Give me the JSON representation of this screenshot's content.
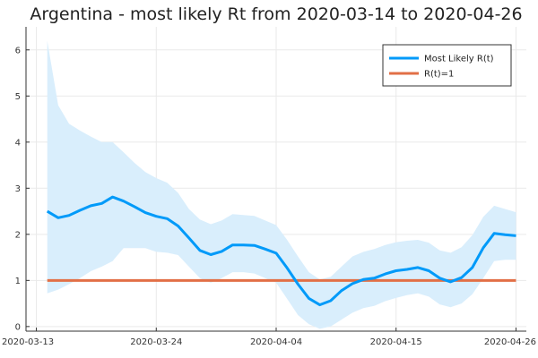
{
  "chart_data": {
    "type": "line",
    "title": "Argentina - most likely Rt from 2020-03-14 to 2020-04-26",
    "xlabel": "",
    "ylabel": "",
    "x_start": "2020-03-14",
    "x_end": "2020-04-26",
    "x_ticks": [
      "2020-03-13",
      "2020-03-24",
      "2020-04-04",
      "2020-04-15",
      "2020-04-26"
    ],
    "ylim": [
      -0.1,
      6.5
    ],
    "y_ticks": [
      0,
      1,
      2,
      3,
      4,
      5,
      6
    ],
    "grid": true,
    "legend_position": "top-right",
    "colors": {
      "most_likely": "#009AF9",
      "reference": "#E26F46",
      "band": "#D9EEFC"
    },
    "series": [
      {
        "name": "Most Likely R(t)",
        "values": [
          2.5,
          2.36,
          2.41,
          2.52,
          2.62,
          2.67,
          2.81,
          2.72,
          2.6,
          2.47,
          2.39,
          2.34,
          2.18,
          1.92,
          1.65,
          1.56,
          1.63,
          1.77,
          1.77,
          1.76,
          1.68,
          1.59,
          1.27,
          0.92,
          0.61,
          0.47,
          0.56,
          0.78,
          0.93,
          1.02,
          1.05,
          1.14,
          1.21,
          1.24,
          1.28,
          1.21,
          1.05,
          0.97,
          1.06,
          1.28,
          1.71,
          2.02,
          1.99,
          1.97
        ]
      },
      {
        "name": "R(t)=1",
        "values": [
          1,
          1
        ]
      }
    ],
    "interval": {
      "low": [
        0.72,
        0.8,
        0.92,
        1.05,
        1.2,
        1.3,
        1.42,
        1.7,
        1.7,
        1.7,
        1.62,
        1.6,
        1.55,
        1.3,
        1.05,
        0.95,
        1.05,
        1.18,
        1.18,
        1.15,
        1.05,
        0.95,
        0.6,
        0.25,
        0.05,
        -0.05,
        0.0,
        0.15,
        0.3,
        0.4,
        0.45,
        0.55,
        0.62,
        0.68,
        0.72,
        0.65,
        0.48,
        0.42,
        0.5,
        0.7,
        1.05,
        1.42,
        1.45,
        1.45
      ],
      "high": [
        6.2,
        4.8,
        4.4,
        4.25,
        4.12,
        4.0,
        4.0,
        3.78,
        3.55,
        3.35,
        3.22,
        3.12,
        2.9,
        2.55,
        2.32,
        2.22,
        2.3,
        2.44,
        2.42,
        2.4,
        2.3,
        2.2,
        1.88,
        1.52,
        1.18,
        1.02,
        1.08,
        1.3,
        1.52,
        1.62,
        1.68,
        1.77,
        1.83,
        1.86,
        1.88,
        1.82,
        1.65,
        1.6,
        1.72,
        1.98,
        2.38,
        2.62,
        2.55,
        2.48
      ]
    }
  }
}
